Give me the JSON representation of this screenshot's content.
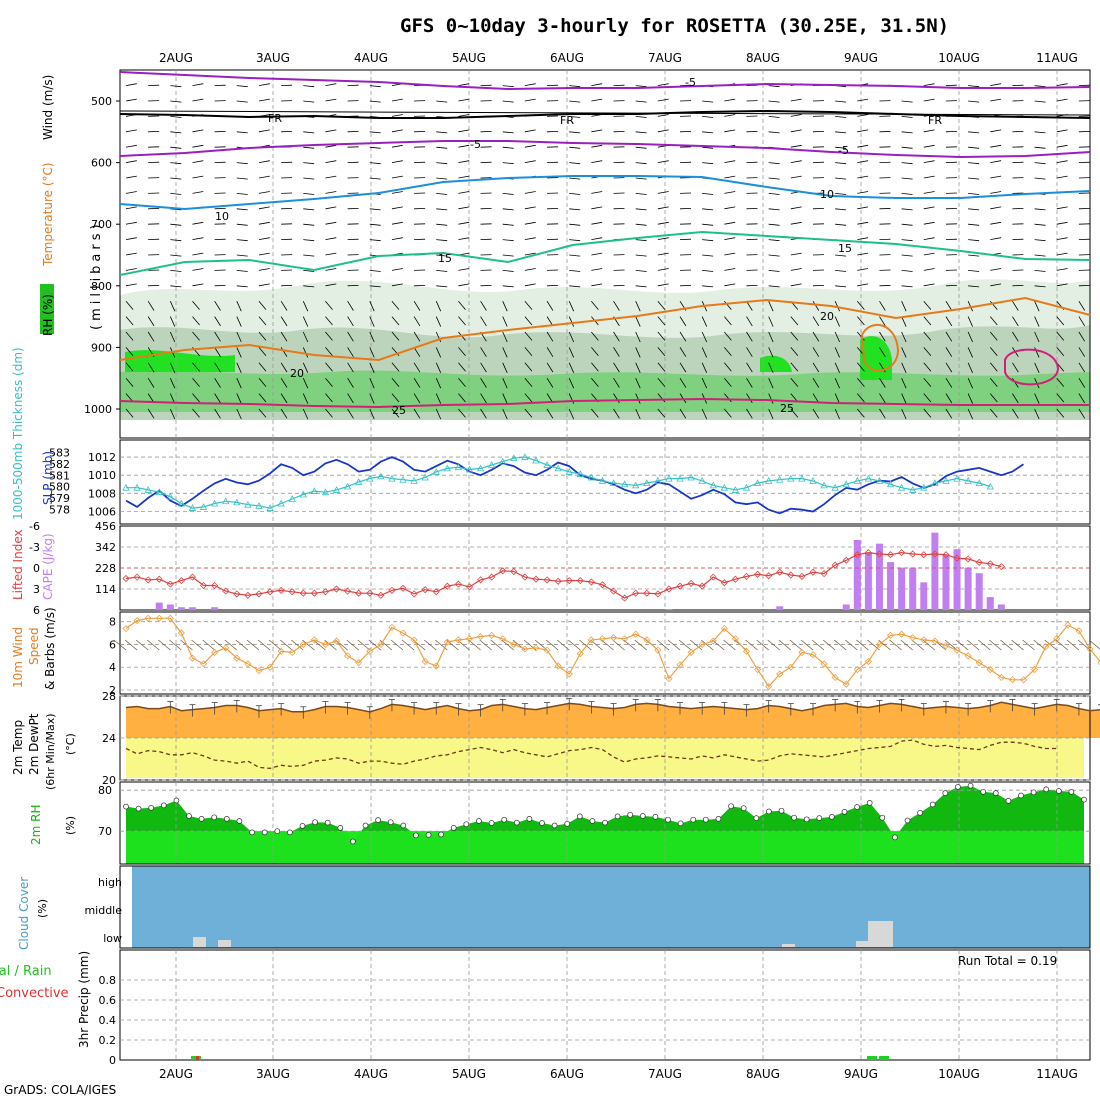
{
  "title": "GFS 0~10day 3-hourly for ROSETTA (30.25E, 31.5N)",
  "credit": "GrADS: COLA/IGES",
  "days": [
    "2AUG",
    "3AUG",
    "4AUG",
    "5AUG",
    "6AUG",
    "7AUG",
    "8AUG",
    "9AUG",
    "10AUG",
    "11AUG"
  ],
  "colors": {
    "purple": "#9a1fc0",
    "black": "#000000",
    "blue": "#1a8fdc",
    "teal": "#1fbf8c",
    "orange": "#e67a1a",
    "magenta": "#d0207a",
    "slp": "#1836c8",
    "thickness": "#36c2c2",
    "lifted": "#e04040",
    "cape": "#c080f0",
    "wind": "#f0a040",
    "temp_fill": "#ffb040",
    "dew_fill": "#f8f888",
    "rh_light": "#20e020",
    "rh_dark": "#10b810",
    "cloud": "#6fb0d8",
    "precip": "#20d020"
  },
  "panels": {
    "upper": {
      "y_label_wind": "Wind (m/s)",
      "y_label_temp": "Temperature (°C)",
      "y_label_rh": "RH (%)",
      "y_unit": "(millibars)",
      "y_ticks": [
        "500",
        "600",
        "700",
        "800",
        "900",
        "1000"
      ],
      "contour_labels": [
        "-5",
        "FR",
        "-5",
        "10",
        "15",
        "20",
        "25",
        "10",
        "5",
        "20"
      ]
    },
    "slp": {
      "left_label": "1000-500mb Thickness (dm)",
      "right_label": "SLP (mb)",
      "thick_ticks": [
        "583",
        "582",
        "581",
        "580",
        "579",
        "578"
      ],
      "slp_ticks": [
        "1012",
        "1010",
        "1008",
        "1006"
      ]
    },
    "cape": {
      "label_li": "Lifted Index",
      "label_cape": "CAPE (J/kg)",
      "li_ticks": [
        "-6",
        "-3",
        "0",
        "3",
        "6"
      ],
      "cape_ticks": [
        "456",
        "342",
        "228",
        "114"
      ]
    },
    "wind10": {
      "label": "10m Wind",
      "label2": "Speed",
      "label3": "& Barbs (m/s)",
      "ticks": [
        "8",
        "6",
        "4",
        "2"
      ]
    },
    "temp2m": {
      "label": "2m Temp",
      "label2": "2m DewPt",
      "label3": "(6hr Min/Max)",
      "unit": "(°C)",
      "ticks": [
        "28",
        "24",
        "20"
      ]
    },
    "rh2m": {
      "label": "2m RH",
      "unit": "(%)",
      "ticks": [
        "80",
        "70"
      ]
    },
    "cloud": {
      "label": "Cloud Cover",
      "unit": "(%)",
      "ticks": [
        "high",
        "middle",
        "low"
      ]
    },
    "precip": {
      "label": "Total / Rain",
      "label2": "Convective",
      "label3": "3hr Precip (mm)",
      "ticks": [
        "0.8",
        "0.6",
        "0.4",
        "0.2",
        "0"
      ],
      "run_total": "Run Total = 0.19"
    }
  },
  "chart_data": [
    {
      "type": "line",
      "title": "SLP (mb)",
      "x": "3-hourly steps 2AUG-11AUG (0..77)",
      "ylim": [
        1005.5,
        1013
      ],
      "values": [
        1007.2,
        1006.5,
        1007.5,
        1008.3,
        1007.2,
        1006.6,
        1007.4,
        1008.3,
        1009.1,
        1009.6,
        1009.2,
        1009.0,
        1009.4,
        1010.2,
        1011.2,
        1010.8,
        1010.0,
        1010.4,
        1011.3,
        1011.7,
        1011.2,
        1010.4,
        1010.6,
        1011.5,
        1012.0,
        1011.5,
        1010.6,
        1010.4,
        1011.0,
        1011.6,
        1011.2,
        1010.4,
        1010.0,
        1010.6,
        1011.3,
        1011.0,
        1010.3,
        1010.0,
        1010.6,
        1011.4,
        1011.0,
        1010.0,
        1009.6,
        1009.4,
        1009.0,
        1008.4,
        1008.0,
        1008.4,
        1009.2,
        1009.0,
        1008.2,
        1007.4,
        1007.8,
        1008.4,
        1007.9,
        1007.0,
        1006.8,
        1007.0,
        1006.2,
        1005.8,
        1006.3,
        1006.2,
        1006.0,
        1006.8,
        1007.8,
        1008.6,
        1008.4,
        1009.0,
        1009.4,
        1009.3,
        1009.8,
        1009.1,
        1008.6,
        1009.0,
        1009.9,
        1010.4,
        1010.6,
        1010.8,
        1010.4,
        1010.0,
        1010.4,
        1011.2
      ],
      "color": "#1836c8"
    },
    {
      "type": "line",
      "title": "1000-500mb Thickness (dm)",
      "ylim": [
        577.5,
        583.5
      ],
      "values": [
        580,
        580,
        579.8,
        579.6,
        579.2,
        578.6,
        578.2,
        578.3,
        578.6,
        578.8,
        578.7,
        578.5,
        578.4,
        578.2,
        578.6,
        579.0,
        579.4,
        579.7,
        579.6,
        579.8,
        580.1,
        580.5,
        580.8,
        581.0,
        580.8,
        580.7,
        580.6,
        580.9,
        581.4,
        581.7,
        581.8,
        581.6,
        581.7,
        582.0,
        582.3,
        582.6,
        582.7,
        582.4,
        582.0,
        581.7,
        581.4,
        581.2,
        580.9,
        580.6,
        580.4,
        580.3,
        580.2,
        580.4,
        580.6,
        580.8,
        580.8,
        580.9,
        580.6,
        580.2,
        580.0,
        579.8,
        580.0,
        580.4,
        580.6,
        580.7,
        580.8,
        580.8,
        580.6,
        580.2,
        580.0,
        580.3,
        580.6,
        580.8,
        580.6,
        580.3,
        580.0,
        579.8,
        580.0,
        580.4,
        580.6,
        580.8,
        580.6,
        580.4,
        580.1
      ],
      "color": "#36c2c2"
    },
    {
      "type": "bar",
      "title": "CAPE (J/kg)",
      "ylim": [
        0,
        456
      ],
      "values": [
        0,
        0,
        0,
        40,
        30,
        15,
        15,
        0,
        15,
        0,
        0,
        0,
        0,
        0,
        0,
        0,
        0,
        0,
        0,
        0,
        0,
        0,
        0,
        0,
        0,
        0,
        0,
        0,
        0,
        0,
        0,
        0,
        0,
        0,
        0,
        0,
        0,
        0,
        0,
        0,
        0,
        0,
        0,
        0,
        0,
        0,
        0,
        0,
        0,
        5,
        0,
        0,
        0,
        0,
        0,
        0,
        0,
        0,
        0,
        20,
        0,
        0,
        0,
        0,
        0,
        30,
        380,
        310,
        360,
        260,
        230,
        230,
        150,
        420,
        300,
        330,
        230,
        200,
        70,
        30
      ],
      "color": "#c080f0"
    },
    {
      "type": "line",
      "title": "Lifted Index",
      "ylim": [
        6,
        -6
      ],
      "values": [
        1.5,
        1.3,
        1.7,
        1.6,
        2.3,
        1.8,
        1.3,
        2.5,
        2.5,
        3.3,
        3.7,
        3.9,
        3.7,
        3.4,
        3.2,
        3.4,
        3.6,
        3.6,
        3.4,
        3.0,
        3.3,
        3.6,
        3.6,
        3.9,
        3.2,
        2.9,
        3.7,
        3.1,
        3.4,
        2.6,
        2.3,
        2.7,
        1.7,
        1.3,
        0.4,
        0.5,
        1.3,
        1.6,
        1.7,
        1.9,
        1.8,
        1.8,
        2.0,
        2.4,
        3.3,
        4.3,
        3.6,
        3.6,
        3.7,
        3.0,
        2.6,
        2.2,
        2.6,
        1.3,
        2.1,
        1.6,
        1.2,
        0.9,
        1.1,
        0.6,
        1.0,
        1.2,
        0.6,
        0.8,
        -0.4,
        -1.1,
        -1.9,
        -2.2,
        -2.0,
        -1.9,
        -2.2,
        -2.0,
        -1.9,
        -2.0,
        -1.9,
        -1.4,
        -1.3,
        -0.8,
        -0.6,
        -0.2
      ],
      "color": "#e04040"
    },
    {
      "type": "line",
      "title": "10m Wind Speed (m/s)",
      "ylim": [
        2,
        8.5
      ],
      "values": [
        7.4,
        8.1,
        8.3,
        8.3,
        8.3,
        7.0,
        4.8,
        4.3,
        5.3,
        5.7,
        4.8,
        4.3,
        3.7,
        4.0,
        5.4,
        5.3,
        6.0,
        6.4,
        6.0,
        6.3,
        5.0,
        4.4,
        5.4,
        6.0,
        7.5,
        7.0,
        6.4,
        4.5,
        4.1,
        6.2,
        6.4,
        6.5,
        6.7,
        6.8,
        6.5,
        6.0,
        5.6,
        5.7,
        5.5,
        4.1,
        3.4,
        5.2,
        6.4,
        6.5,
        6.6,
        6.5,
        6.9,
        6.4,
        5.5,
        3.0,
        4.2,
        5.3,
        6.0,
        6.3,
        7.4,
        6.5,
        5.4,
        3.8,
        2.3,
        3.4,
        4.0,
        5.3,
        5.1,
        4.3,
        3.1,
        2.5,
        3.8,
        4.5,
        6.0,
        6.8,
        6.9,
        6.6,
        6.4,
        6.3,
        5.9,
        5.5,
        5.0,
        4.4,
        3.8,
        3.1,
        2.9,
        2.9,
        3.8,
        5.8,
        6.5,
        7.7,
        7.2,
        5.6,
        4.4,
        4.2,
        4.3
      ],
      "color": "#f0a040"
    },
    {
      "type": "area",
      "title": "2m Temp (°C)",
      "ylim": [
        20,
        28
      ],
      "values": [
        26.9,
        27.0,
        26.8,
        26.8,
        27.0,
        26.6,
        26.7,
        26.8,
        26.9,
        27.1,
        27.1,
        26.9,
        26.6,
        26.7,
        26.8,
        26.5,
        26.5,
        26.7,
        27.0,
        27.0,
        26.9,
        26.7,
        26.5,
        26.8,
        27.2,
        27.1,
        26.9,
        26.7,
        26.9,
        27.1,
        26.8,
        26.6,
        26.7,
        27.1,
        27.2,
        27.0,
        26.8,
        26.7,
        26.9,
        27.1,
        27.3,
        27.2,
        27.0,
        26.9,
        26.8,
        26.9,
        27.2,
        27.3,
        27.2,
        27.0,
        26.9,
        26.8,
        26.9,
        27.0,
        26.9,
        26.8,
        26.7,
        26.8,
        27.1,
        27.0,
        26.8,
        26.6,
        26.8,
        27.1,
        27.2,
        27.3,
        27.0,
        26.9,
        27.1,
        27.3,
        27.2,
        27.0,
        26.8,
        26.9,
        27.0,
        26.9,
        26.8,
        26.9,
        27.1,
        27.4,
        27.2,
        27.0,
        26.8,
        27.0,
        27.2,
        27.1,
        26.8,
        26.6,
        26.7
      ],
      "color": "#ffb040"
    },
    {
      "type": "line",
      "title": "2m DewPt (°C)",
      "ylim": [
        20,
        28
      ],
      "values": [
        23.0,
        22.5,
        22.8,
        22.7,
        22.4,
        22.4,
        22.6,
        22.3,
        21.9,
        21.8,
        21.6,
        21.8,
        21.2,
        21.1,
        21.4,
        21.3,
        21.4,
        21.8,
        21.9,
        22.1,
        22.0,
        21.6,
        21.8,
        21.8,
        21.6,
        21.5,
        21.8,
        22.0,
        22.3,
        22.4,
        22.7,
        22.9,
        23.1,
        22.9,
        22.6,
        22.9,
        22.6,
        22.4,
        22.2,
        22.5,
        22.8,
        22.9,
        23.1,
        22.9,
        22.2,
        21.7,
        22.0,
        22.1,
        22.3,
        22.2,
        22.1,
        22.0,
        22.3,
        22.1,
        22.4,
        22.2,
        22.0,
        21.8,
        21.9,
        22.3,
        22.5,
        22.4,
        22.3,
        22.2,
        22.4,
        22.6,
        22.8,
        23.0,
        23.1,
        23.2,
        23.7,
        23.8,
        23.4,
        23.2,
        23.3,
        23.1,
        23.0,
        22.9,
        23.3,
        23.6,
        23.6,
        23.5,
        23.2,
        23.0,
        23.0
      ],
      "color": "#6a3a10"
    },
    {
      "type": "area",
      "title": "2m RH (%)",
      "ylim": [
        62,
        82
      ],
      "values": [
        76,
        75.5,
        75.7,
        76.3,
        77.5,
        73.7,
        73.0,
        73.4,
        73.0,
        72.5,
        69.7,
        69.7,
        70.0,
        69.7,
        71.3,
        72.2,
        72.1,
        70.8,
        67.5,
        71.4,
        72.7,
        72.2,
        71.4,
        69.0,
        69.1,
        69.2,
        70.8,
        71.7,
        72.5,
        72.0,
        72.8,
        72.1,
        73.0,
        72.0,
        71.4,
        71.8,
        73.6,
        72.5,
        72.1,
        73.6,
        74.0,
        73.7,
        73.5,
        72.8,
        71.9,
        72.8,
        72.8,
        73.0,
        76.1,
        75.6,
        73.2,
        74.8,
        75.0,
        73.3,
        72.9,
        73.2,
        73.5,
        74.7,
        75.9,
        76.9,
        73.3,
        68.5,
        72.6,
        74.5,
        76.5,
        79.3,
        80.8,
        81.1,
        79.6,
        79.3,
        77.4,
        78.7,
        79.5,
        80.2,
        79.8,
        79.6,
        77.7
      ],
      "color": "#10b810"
    },
    {
      "type": "bar",
      "title": "3hr Precip (mm)",
      "ylim": [
        0,
        1.0
      ],
      "values_note": "rain at 2AUG ~0.04 (convective), 9AUG ~0.04, 0.04",
      "categories": [
        "2AUG",
        "9AUG",
        "9AUG"
      ],
      "values": [
        0.04,
        0.04,
        0.04
      ],
      "color": "#20d020"
    }
  ]
}
